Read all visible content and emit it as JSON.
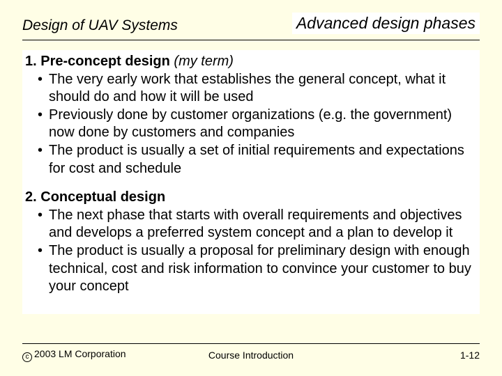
{
  "background_color": "#fffee6",
  "header": {
    "left": "Design of UAV Systems",
    "right": "Advanced design phases"
  },
  "sections": [
    {
      "number": "1.",
      "title_bold": "Pre-concept design",
      "title_paren": "(my term)",
      "bullets": [
        "The very early work that establishes the general concept, what it should do and how it will be used",
        "Previously done by customer organizations (e.g. the government) now done by customers and companies",
        "The product is usually a set of initial requirements and expectations for cost and schedule"
      ]
    },
    {
      "number": "2.",
      "title_bold": "Conceptual design",
      "title_paren": "",
      "bullets": [
        "The next phase that starts with overall requirements and objectives and develops a preferred system concept and a plan to develop it",
        "The product is usually a proposal for preliminary design with enough technical, cost and risk information to convince your customer to buy your concept"
      ]
    }
  ],
  "footer": {
    "copyright_symbol": "c",
    "left": "2003 LM Corporation",
    "center": "Course Introduction",
    "right": "1-12"
  }
}
